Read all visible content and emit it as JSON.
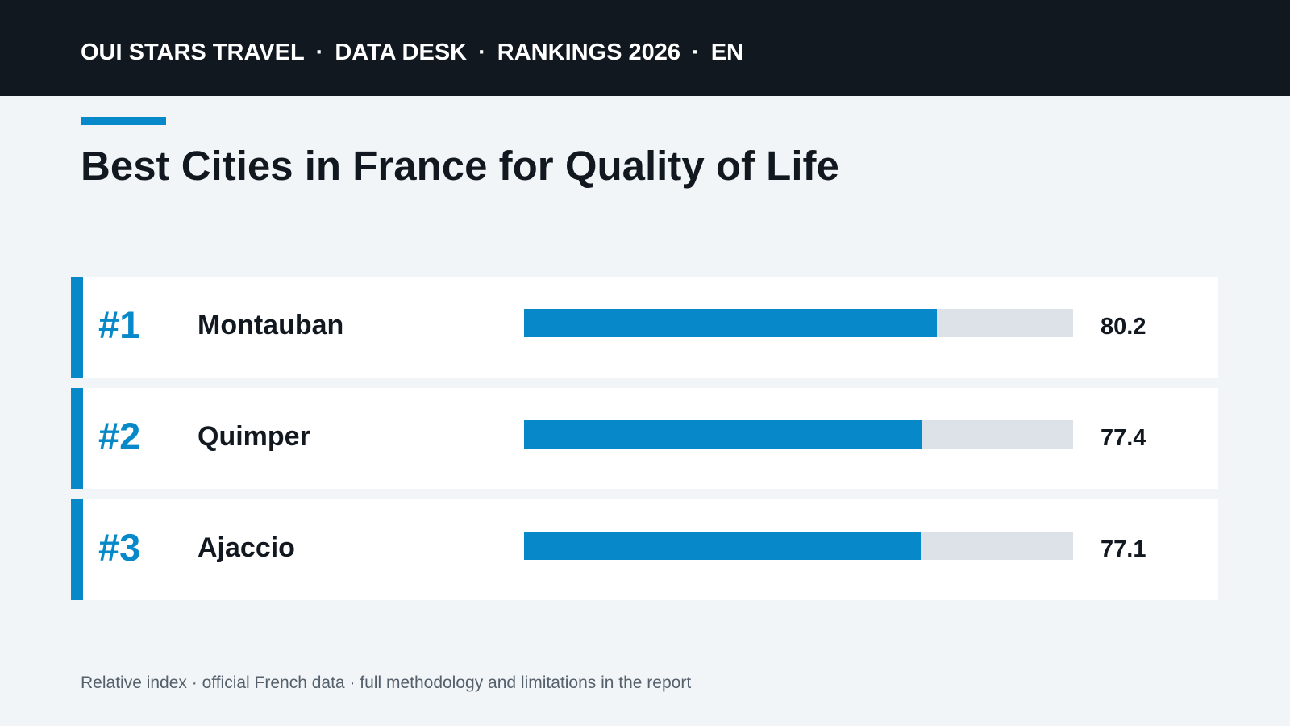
{
  "header": {
    "items": [
      "OUI STARS TRAVEL",
      "DATA DESK",
      "RANKINGS 2026",
      "EN"
    ],
    "separator": "·"
  },
  "colors": {
    "accent": "#0788c9",
    "track": "#dde2e8",
    "header_bg": "#121820",
    "page_bg": "#f1f5f8",
    "text": "#121820",
    "muted": "#55606b"
  },
  "chart_data": {
    "type": "bar",
    "orientation": "horizontal",
    "title": "Best Cities in France for Quality of Life",
    "footnote": "Relative index · official French data · full methodology and limitations in the report",
    "xlim": [
      0,
      100
    ],
    "grid": false,
    "rows": [
      {
        "rank": "#1",
        "city": "Montauban",
        "value": 80.2,
        "label": "80.2"
      },
      {
        "rank": "#2",
        "city": "Quimper",
        "value": 77.4,
        "label": "77.4"
      },
      {
        "rank": "#3",
        "city": "Ajaccio",
        "value": 77.1,
        "label": "77.1"
      }
    ]
  }
}
